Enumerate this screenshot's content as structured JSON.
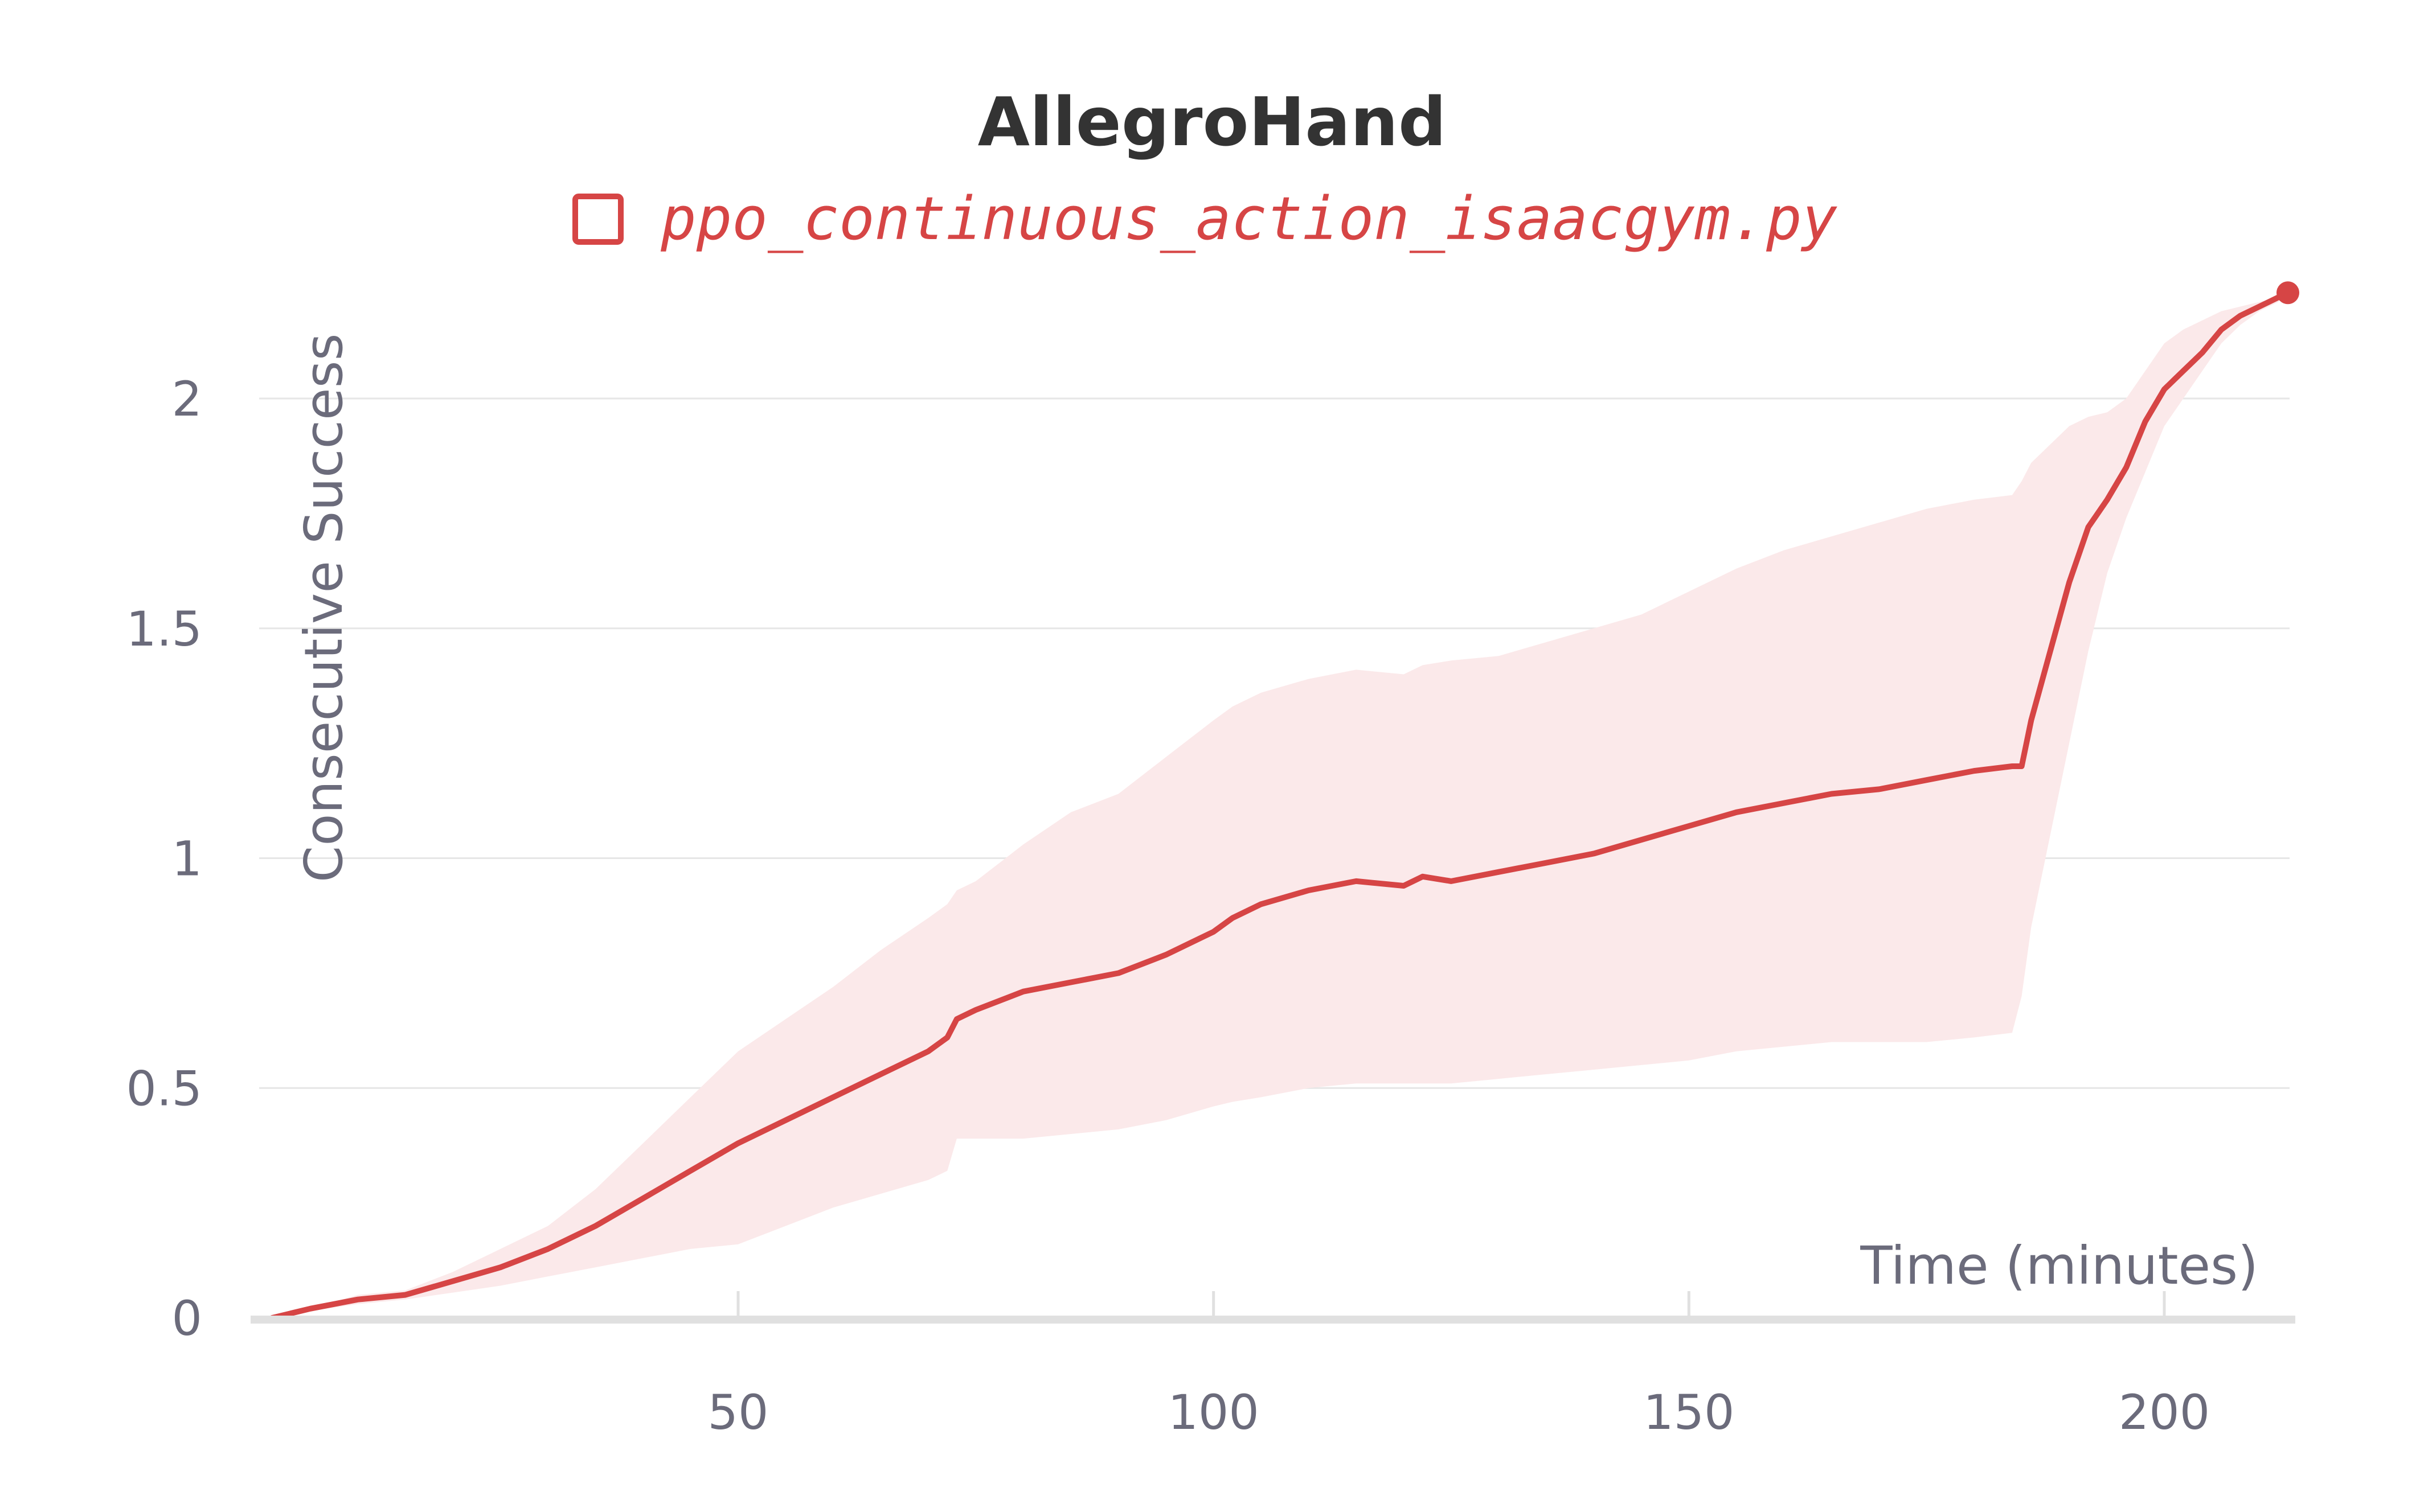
{
  "colors": {
    "series": "#d64545",
    "band": "#fbe9ea",
    "grid": "#e6e6e6",
    "axis": "#e0e0e0",
    "tick_text": "#6b6b7b",
    "title_text": "#333333"
  },
  "chart_data": {
    "type": "line",
    "title": "AllegroHand",
    "xlabel": "Time (minutes)",
    "ylabel": "Consecutive Success",
    "xlim": [
      0,
      213.5
    ],
    "ylim": [
      0,
      2.35
    ],
    "xticks": [
      {
        "value": 50,
        "label": "50"
      },
      {
        "value": 100,
        "label": "100"
      },
      {
        "value": 150,
        "label": "150"
      },
      {
        "value": 200,
        "label": "200"
      }
    ],
    "yticks": [
      {
        "value": 0,
        "label": "0"
      },
      {
        "value": 0.5,
        "label": "0.5"
      },
      {
        "value": 1,
        "label": "1"
      },
      {
        "value": 1.5,
        "label": "1.5"
      },
      {
        "value": 2,
        "label": "2"
      }
    ],
    "grid": "horizontal",
    "legend_position": "top-center",
    "series": [
      {
        "name": "ppo_continuous_action_isaacgym.py",
        "color": "#d64545",
        "end_marker": true,
        "x": [
          1,
          3,
          5,
          10,
          15,
          20,
          25,
          30,
          35,
          40,
          45,
          50,
          55,
          60,
          65,
          70,
          72,
          73,
          75,
          80,
          85,
          90,
          95,
          100,
          102,
          105,
          110,
          115,
          120,
          122,
          125,
          130,
          135,
          140,
          145,
          150,
          155,
          160,
          165,
          170,
          175,
          180,
          184,
          185,
          186,
          188,
          190,
          192,
          194,
          196,
          198,
          200,
          202,
          204,
          206,
          208,
          210,
          212,
          213
        ],
        "y": [
          0.0,
          0.01,
          0.02,
          0.04,
          0.05,
          0.08,
          0.11,
          0.15,
          0.2,
          0.26,
          0.32,
          0.38,
          0.43,
          0.48,
          0.53,
          0.58,
          0.61,
          0.65,
          0.67,
          0.71,
          0.73,
          0.75,
          0.79,
          0.84,
          0.87,
          0.9,
          0.93,
          0.95,
          0.94,
          0.96,
          0.95,
          0.97,
          0.99,
          1.01,
          1.04,
          1.07,
          1.1,
          1.12,
          1.14,
          1.15,
          1.17,
          1.19,
          1.2,
          1.2,
          1.3,
          1.45,
          1.6,
          1.72,
          1.78,
          1.85,
          1.95,
          2.02,
          2.06,
          2.1,
          2.15,
          2.18,
          2.2,
          2.22,
          2.23
        ],
        "band_upper": [
          0.0,
          0.01,
          0.02,
          0.05,
          0.06,
          0.1,
          0.15,
          0.2,
          0.28,
          0.38,
          0.48,
          0.58,
          0.65,
          0.72,
          0.8,
          0.87,
          0.9,
          0.93,
          0.95,
          1.03,
          1.1,
          1.14,
          1.22,
          1.3,
          1.33,
          1.36,
          1.39,
          1.41,
          1.4,
          1.42,
          1.43,
          1.44,
          1.47,
          1.5,
          1.53,
          1.58,
          1.63,
          1.67,
          1.7,
          1.73,
          1.76,
          1.78,
          1.79,
          1.82,
          1.86,
          1.9,
          1.94,
          1.96,
          1.97,
          2.0,
          2.06,
          2.12,
          2.15,
          2.17,
          2.19,
          2.2,
          2.21,
          2.22,
          2.23
        ],
        "band_lower": [
          0.0,
          0.01,
          0.015,
          0.03,
          0.04,
          0.055,
          0.07,
          0.09,
          0.11,
          0.13,
          0.15,
          0.16,
          0.2,
          0.24,
          0.27,
          0.3,
          0.32,
          0.39,
          0.39,
          0.39,
          0.4,
          0.41,
          0.43,
          0.46,
          0.47,
          0.48,
          0.5,
          0.51,
          0.51,
          0.51,
          0.51,
          0.52,
          0.53,
          0.54,
          0.55,
          0.56,
          0.58,
          0.59,
          0.6,
          0.6,
          0.6,
          0.61,
          0.62,
          0.7,
          0.85,
          1.05,
          1.25,
          1.45,
          1.62,
          1.74,
          1.84,
          1.94,
          2.0,
          2.06,
          2.12,
          2.16,
          2.19,
          2.21,
          2.23
        ]
      }
    ]
  }
}
